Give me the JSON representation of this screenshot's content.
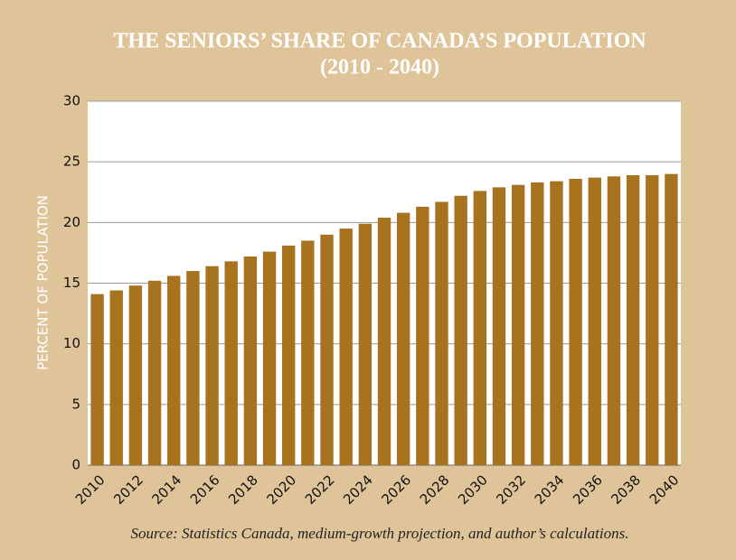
{
  "chart_data": {
    "type": "bar",
    "title": "THE SENIORS’ SHARE OF CANADA’S POPULATION",
    "subtitle": "(2010 - 2040)",
    "y_label": "PERCENT OF POPULATION",
    "source": "Source: Statistics Canada, medium-growth projection, and author’s calculations.",
    "categories": [
      "2010",
      null,
      "2012",
      null,
      "2014",
      null,
      "2016",
      null,
      "2018",
      null,
      "2020",
      null,
      "2022",
      null,
      "2024",
      null,
      "2026",
      null,
      "2028",
      null,
      "2030",
      null,
      "2032",
      null,
      "2034",
      null,
      "2036",
      null,
      "2038",
      null,
      "2040"
    ],
    "values": [
      14.1,
      14.4,
      14.8,
      15.2,
      15.6,
      16.0,
      16.4,
      16.8,
      17.2,
      17.6,
      18.1,
      18.5,
      19.0,
      19.5,
      19.9,
      20.4,
      20.8,
      21.3,
      21.7,
      22.2,
      22.6,
      22.9,
      23.1,
      23.3,
      23.4,
      23.6,
      23.7,
      23.8,
      23.9,
      23.9,
      24.0
    ],
    "color": "#a8731f",
    "ylim": [
      0,
      30
    ],
    "yticks": [
      0,
      5,
      10,
      15,
      20,
      25,
      30
    ],
    "grid": true
  }
}
